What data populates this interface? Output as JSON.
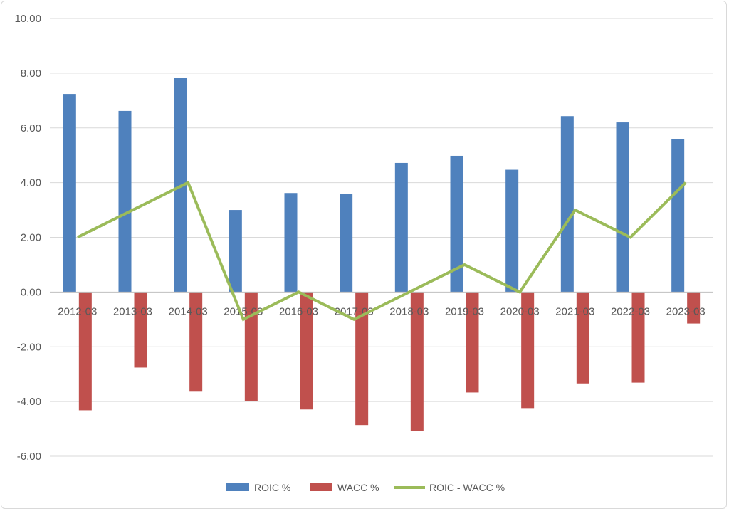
{
  "chart_data": {
    "type": "bar",
    "categories": [
      "2012-03",
      "2013-03",
      "2014-03",
      "2015-03",
      "2016-03",
      "2017-03",
      "2018-03",
      "2019-03",
      "2020-03",
      "2021-03",
      "2022-03",
      "2023-03"
    ],
    "series": [
      {
        "name": "ROIC %",
        "type": "bar",
        "color": "#4f81bd",
        "values": [
          7.24,
          6.62,
          7.84,
          3.0,
          3.62,
          3.59,
          4.72,
          4.98,
          4.47,
          6.43,
          6.2,
          5.58
        ]
      },
      {
        "name": "WACC %",
        "type": "bar",
        "color": "#c0504d",
        "values": [
          -4.32,
          -2.76,
          -3.64,
          -3.98,
          -4.29,
          -4.86,
          -5.08,
          -3.67,
          -4.24,
          -3.34,
          -3.31,
          -1.15
        ]
      },
      {
        "name": "ROIC - WACC %",
        "type": "line",
        "color": "#9bbb59",
        "values": [
          2.0,
          3.0,
          4.0,
          -1.0,
          0.0,
          -1.0,
          0.0,
          1.0,
          0.0,
          3.0,
          2.0,
          4.0
        ]
      }
    ],
    "yticks": [
      "10.00",
      "8.00",
      "6.00",
      "4.00",
      "2.00",
      "0.00",
      "-2.00",
      "-4.00",
      "-6.00"
    ],
    "ylim": [
      -6,
      10
    ],
    "grid": true,
    "legend_position": "bottom",
    "title": "",
    "xlabel": "",
    "ylabel": ""
  }
}
